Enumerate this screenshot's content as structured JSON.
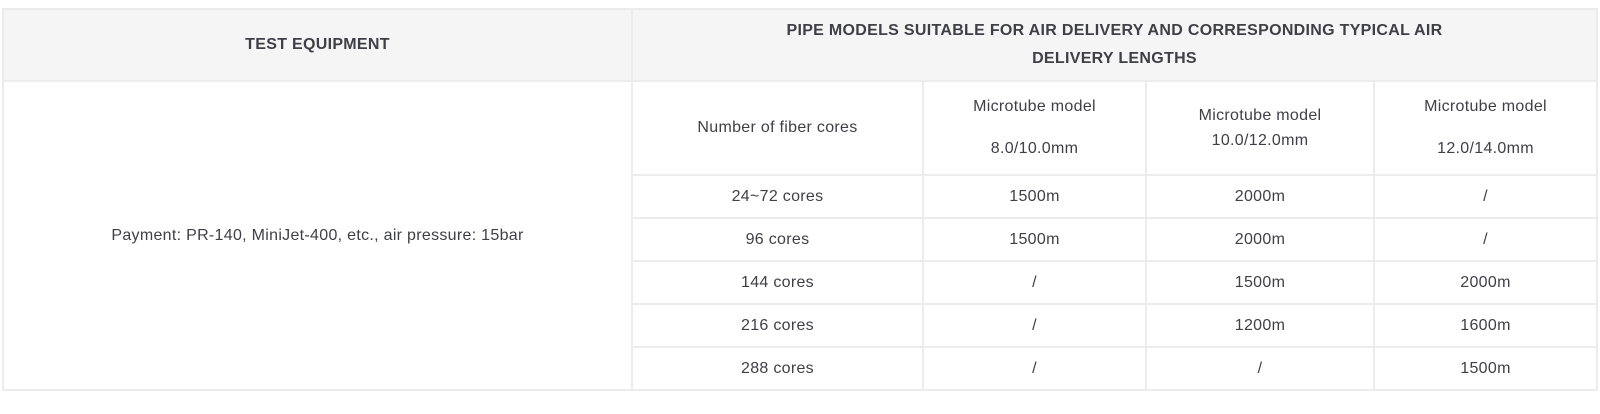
{
  "table": {
    "header": {
      "test_equipment": "TEST EQUIPMENT",
      "pipe_models": "PIPE MODELS SUITABLE FOR AIR DELIVERY AND CORRESPONDING TYPICAL AIR DELIVERY LENGTHS"
    },
    "equipment_cell": "Payment: PR-140, MiniJet-400, etc., air pressure: 15bar",
    "subheader": {
      "fiber_cores": "Number of fiber cores",
      "models": [
        {
          "line1": "Microtube model",
          "line2": "8.0/10.0mm"
        },
        {
          "line1": "Microtube model",
          "line2": "10.0/12.0mm"
        },
        {
          "line1": "Microtube model",
          "line2": "12.0/14.0mm"
        }
      ]
    },
    "rows": [
      {
        "cores": "24~72 cores",
        "m8": "1500m",
        "m10": "2000m",
        "m12": "/"
      },
      {
        "cores": "96 cores",
        "m8": "1500m",
        "m10": "2000m",
        "m12": "/"
      },
      {
        "cores": "144 cores",
        "m8": "/",
        "m10": "1500m",
        "m12": "2000m"
      },
      {
        "cores": "216 cores",
        "m8": "/",
        "m10": "1200m",
        "m12": "1600m"
      },
      {
        "cores": "288 cores",
        "m8": "/",
        "m10": "/",
        "m12": "1500m"
      }
    ],
    "colors": {
      "header_bg": "#f5f5f5",
      "border": "#ececec",
      "header_text": "#2e2e33",
      "body_text": "#3f3f46"
    }
  }
}
